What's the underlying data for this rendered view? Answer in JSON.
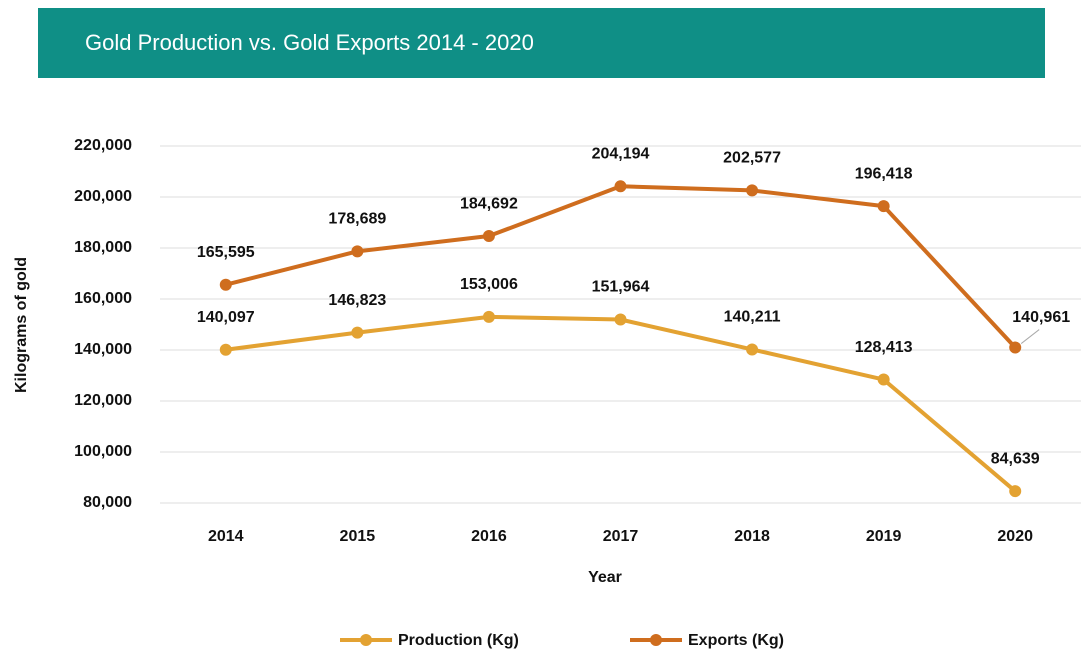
{
  "chart_data": {
    "type": "line",
    "title": "Gold Production vs. Gold Exports 2014 - 2020",
    "xlabel": "Year",
    "ylabel": "Kilograms of gold",
    "categories": [
      "2014",
      "2015",
      "2016",
      "2017",
      "2018",
      "2019",
      "2020"
    ],
    "series": [
      {
        "name": "Production (Kg)",
        "color": "#e3a232",
        "values": [
          140097,
          146823,
          153006,
          151964,
          140211,
          128413,
          84639
        ],
        "value_labels": [
          "140,097",
          "146,823",
          "153,006",
          "151,964",
          "140,211",
          "128,413",
          "84,639"
        ]
      },
      {
        "name": "Exports (Kg)",
        "color": "#cf6d1e",
        "values": [
          165595,
          178689,
          184692,
          204194,
          202577,
          196418,
          140961
        ],
        "value_labels": [
          "165,595",
          "178,689",
          "184,692",
          "204,194",
          "202,577",
          "196,418",
          "140,961"
        ]
      }
    ],
    "ylim": [
      80000,
      220000
    ],
    "yticks": [
      {
        "value": 80000,
        "label": "80,000"
      },
      {
        "value": 100000,
        "label": "100,000"
      },
      {
        "value": 120000,
        "label": "120,000"
      },
      {
        "value": 140000,
        "label": "140,000"
      },
      {
        "value": 160000,
        "label": "160,000"
      },
      {
        "value": 180000,
        "label": "180,000"
      },
      {
        "value": 200000,
        "label": "200,000"
      },
      {
        "value": 220000,
        "label": "220,000"
      }
    ],
    "grid": true,
    "legend": "bottom"
  }
}
